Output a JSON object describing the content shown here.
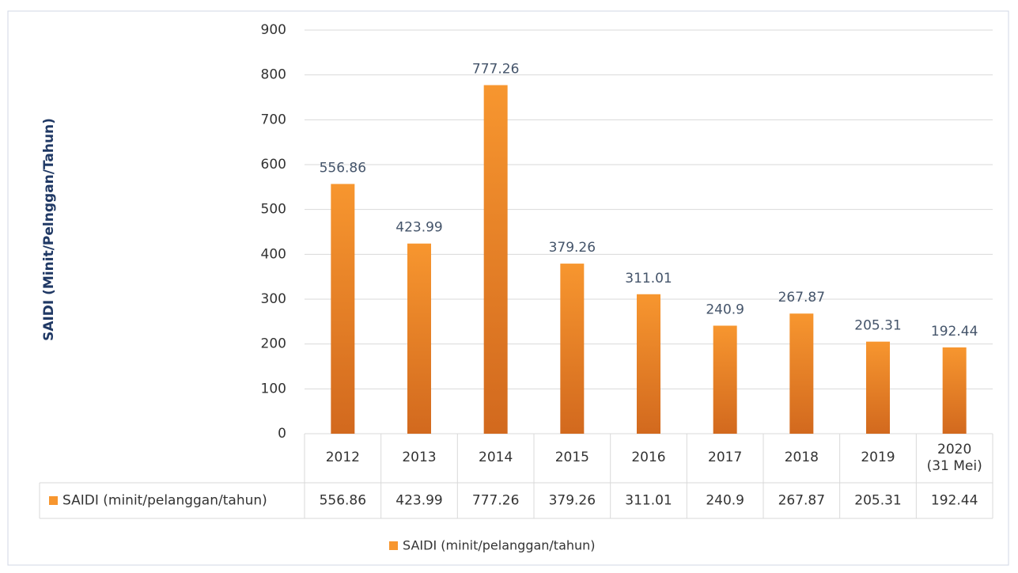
{
  "chart_data": {
    "type": "bar",
    "y_label": "SAIDI (Minit/Pelnggan/Tahun)",
    "categories": [
      "2012",
      "2013",
      "2014",
      "2015",
      "2016",
      "2017",
      "2018",
      "2019",
      "2020\n(31 Mei)"
    ],
    "series": [
      {
        "name": "SAIDI (minit/pelanggan/tahun)",
        "color": "#f7962f",
        "values": [
          556.86,
          423.99,
          777.26,
          379.26,
          311.01,
          240.9,
          267.87,
          205.31,
          192.44
        ]
      }
    ],
    "ylim": [
      0,
      900
    ],
    "yticks": [
      0,
      100,
      200,
      300,
      400,
      500,
      600,
      700,
      800,
      900
    ],
    "grid": true
  }
}
